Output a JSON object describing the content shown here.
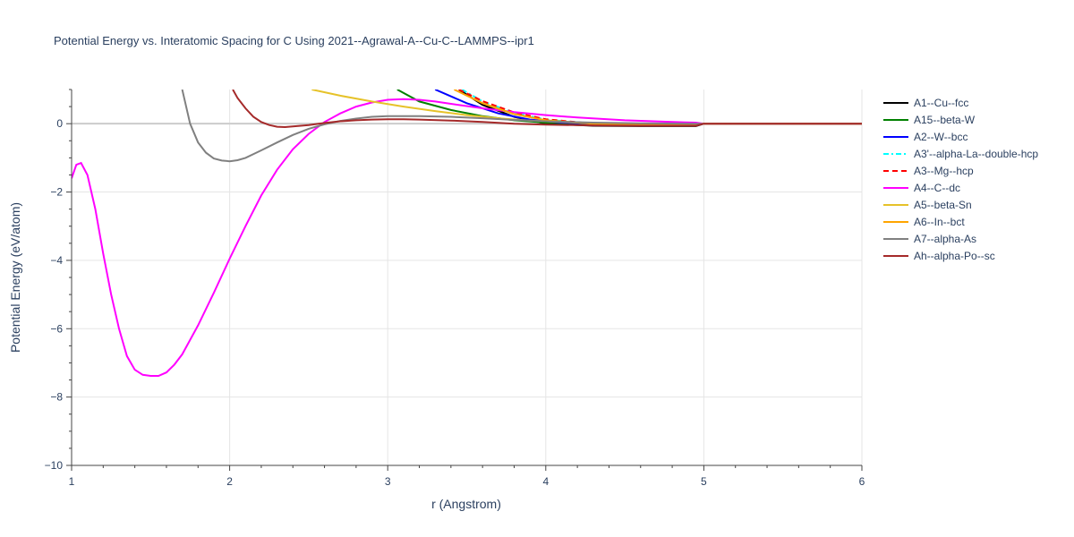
{
  "chart_data": {
    "type": "line",
    "title": "Potential Energy vs. Interatomic Spacing for C Using 2021--Agrawal-A--Cu-C--LAMMPS--ipr1",
    "xlabel": "r (Angstrom)",
    "ylabel": "Potential Energy (eV/atom)",
    "xlim": [
      1,
      6
    ],
    "ylim": [
      -10,
      1
    ],
    "x_ticks": [
      1,
      2,
      3,
      4,
      5,
      6
    ],
    "y_ticks": [
      0,
      -2,
      -4,
      -6,
      -8,
      -10
    ],
    "grid": true,
    "legend_position": "right",
    "series": [
      {
        "name": "A1--Cu--fcc",
        "color": "#000000",
        "dash": "solid",
        "x": [
          3.45,
          3.6,
          3.8,
          4.0,
          4.3,
          4.6,
          4.95,
          5.0,
          6.0
        ],
        "y": [
          1.0,
          0.55,
          0.2,
          0.0,
          -0.06,
          -0.07,
          -0.07,
          0.0,
          0.0
        ]
      },
      {
        "name": "A15--beta-W",
        "color": "#008000",
        "dash": "solid",
        "x": [
          3.06,
          3.2,
          3.4,
          3.6,
          3.8,
          4.0,
          4.4,
          4.95,
          5.0,
          6.0
        ],
        "y": [
          1.0,
          0.65,
          0.4,
          0.22,
          0.1,
          0.03,
          -0.01,
          -0.02,
          0.0,
          0.0
        ]
      },
      {
        "name": "A2--W--bcc",
        "color": "#0000ff",
        "dash": "solid",
        "x": [
          3.3,
          3.5,
          3.7,
          3.9,
          4.1,
          4.4,
          4.95,
          5.0,
          6.0
        ],
        "y": [
          1.0,
          0.6,
          0.3,
          0.12,
          0.03,
          -0.02,
          -0.03,
          0.0,
          0.0
        ]
      },
      {
        "name": "A3'--alpha-La--double-hcp",
        "color": "#00ffff",
        "dash": "dashdot",
        "x": [
          3.47,
          3.6,
          3.8,
          4.0,
          4.3,
          4.6,
          4.95,
          5.0,
          6.0
        ],
        "y": [
          1.0,
          0.65,
          0.32,
          0.12,
          0.0,
          -0.04,
          -0.05,
          0.0,
          0.0
        ]
      },
      {
        "name": "A3--Mg--hcp",
        "color": "#ff0000",
        "dash": "dash",
        "x": [
          3.45,
          3.6,
          3.8,
          4.0,
          4.3,
          4.6,
          4.95,
          5.0,
          6.0
        ],
        "y": [
          1.0,
          0.66,
          0.33,
          0.13,
          0.0,
          -0.04,
          -0.05,
          0.0,
          0.0
        ]
      },
      {
        "name": "A4--C--dc",
        "color": "#ff00ff",
        "dash": "solid",
        "x": [
          1.0,
          1.03,
          1.06,
          1.1,
          1.15,
          1.2,
          1.25,
          1.3,
          1.35,
          1.4,
          1.45,
          1.5,
          1.55,
          1.6,
          1.65,
          1.7,
          1.8,
          1.9,
          2.0,
          2.1,
          2.2,
          2.3,
          2.4,
          2.5,
          2.6,
          2.7,
          2.8,
          2.9,
          3.0,
          3.1,
          3.2,
          3.3,
          3.4,
          3.6,
          3.8,
          4.0,
          4.2,
          4.5,
          4.8,
          4.95,
          5.0,
          6.0
        ],
        "y": [
          -1.6,
          -1.2,
          -1.15,
          -1.5,
          -2.5,
          -3.8,
          -5.0,
          -6.0,
          -6.8,
          -7.2,
          -7.35,
          -7.38,
          -7.38,
          -7.28,
          -7.05,
          -6.75,
          -5.9,
          -4.95,
          -3.95,
          -3.0,
          -2.1,
          -1.35,
          -0.75,
          -0.3,
          0.05,
          0.3,
          0.5,
          0.62,
          0.7,
          0.72,
          0.7,
          0.65,
          0.58,
          0.45,
          0.34,
          0.25,
          0.18,
          0.1,
          0.05,
          0.03,
          0.0,
          0.0
        ]
      },
      {
        "name": "A5--beta-Sn",
        "color": "#e6c229",
        "dash": "solid",
        "x": [
          2.52,
          2.7,
          2.9,
          3.1,
          3.3,
          3.5,
          3.7,
          3.9,
          4.2,
          4.5,
          4.95,
          5.0,
          6.0
        ],
        "y": [
          1.0,
          0.82,
          0.65,
          0.5,
          0.37,
          0.25,
          0.16,
          0.09,
          0.03,
          0.0,
          -0.02,
          0.0,
          0.0
        ]
      },
      {
        "name": "A6--In--bct",
        "color": "#ffa500",
        "dash": "solid",
        "x": [
          3.42,
          3.6,
          3.8,
          4.0,
          4.3,
          4.6,
          4.95,
          5.0,
          6.0
        ],
        "y": [
          1.0,
          0.6,
          0.28,
          0.1,
          0.0,
          -0.03,
          -0.04,
          0.0,
          0.0
        ]
      },
      {
        "name": "A7--alpha-As",
        "color": "#808080",
        "dash": "solid",
        "x": [
          1.7,
          1.75,
          1.8,
          1.85,
          1.9,
          1.95,
          2.0,
          2.05,
          2.1,
          2.2,
          2.3,
          2.4,
          2.5,
          2.6,
          2.7,
          2.8,
          2.9,
          3.0,
          3.2,
          3.4,
          3.6,
          3.8,
          4.0,
          4.3,
          4.6,
          4.95,
          5.0,
          6.0
        ],
        "y": [
          1.0,
          0.0,
          -0.55,
          -0.85,
          -1.02,
          -1.08,
          -1.1,
          -1.07,
          -1.0,
          -0.78,
          -0.55,
          -0.33,
          -0.15,
          -0.02,
          0.08,
          0.15,
          0.2,
          0.22,
          0.22,
          0.2,
          0.16,
          0.11,
          0.07,
          0.03,
          0.01,
          0.0,
          0.0,
          0.0
        ]
      },
      {
        "name": "Ah--alpha-Po--sc",
        "color": "#a52a2a",
        "dash": "solid",
        "x": [
          2.02,
          2.05,
          2.1,
          2.15,
          2.2,
          2.25,
          2.3,
          2.35,
          2.4,
          2.5,
          2.6,
          2.7,
          2.8,
          2.9,
          3.0,
          3.1,
          3.2,
          3.4,
          3.6,
          3.8,
          4.0,
          4.3,
          4.6,
          4.95,
          5.0,
          6.0
        ],
        "y": [
          1.0,
          0.75,
          0.45,
          0.2,
          0.05,
          -0.04,
          -0.09,
          -0.1,
          -0.08,
          -0.04,
          0.02,
          0.07,
          0.1,
          0.12,
          0.13,
          0.13,
          0.12,
          0.09,
          0.05,
          0.0,
          -0.03,
          -0.05,
          -0.06,
          -0.06,
          0.0,
          0.0
        ]
      }
    ]
  }
}
